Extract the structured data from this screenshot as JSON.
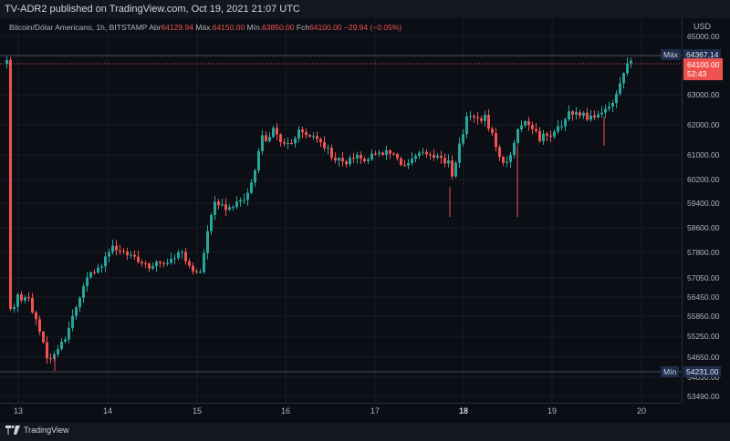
{
  "header": {
    "published_text": "TV-ADR2 published on TradingView.com, Oct 19, 2021 21:07 UTC"
  },
  "legend": {
    "symbol": "Bitcoin/Dólar Americano, 1h, BITSTAMP",
    "open_label": "Abr",
    "open_value": "64129.94",
    "high_label": "Máx.",
    "high_value": "64150.00",
    "low_label": "Mín.",
    "low_value": "63850.00",
    "close_label": "Fch",
    "close_value": "64100.00",
    "change_value": "−29.94 (−0.05%)"
  },
  "price_axis": {
    "currency": "USD",
    "ticks": [
      "65000.00",
      "63000.00",
      "62000.00",
      "61000.00",
      "60200.00",
      "59400.00",
      "58600.00",
      "57800.00",
      "57050.00",
      "56450.00",
      "55850.00",
      "55250.00",
      "54650.00",
      "54030.00",
      "53490.00"
    ],
    "max_label": "Máx",
    "max_value": "64367.14",
    "min_label": "Mín",
    "min_value": "54231.00",
    "last_price": "64100.00",
    "countdown": "52:43"
  },
  "time_axis": {
    "labels": [
      {
        "text": "13",
        "bold": false
      },
      {
        "text": "14",
        "bold": false
      },
      {
        "text": "15",
        "bold": false
      },
      {
        "text": "16",
        "bold": false
      },
      {
        "text": "17",
        "bold": false
      },
      {
        "text": "18",
        "bold": true
      },
      {
        "text": "19",
        "bold": false
      },
      {
        "text": "20",
        "bold": false
      }
    ]
  },
  "footer": {
    "brand": "TradingView"
  },
  "colors": {
    "up": "#26a69a",
    "down": "#ef5350",
    "background": "#0c0e15"
  }
}
